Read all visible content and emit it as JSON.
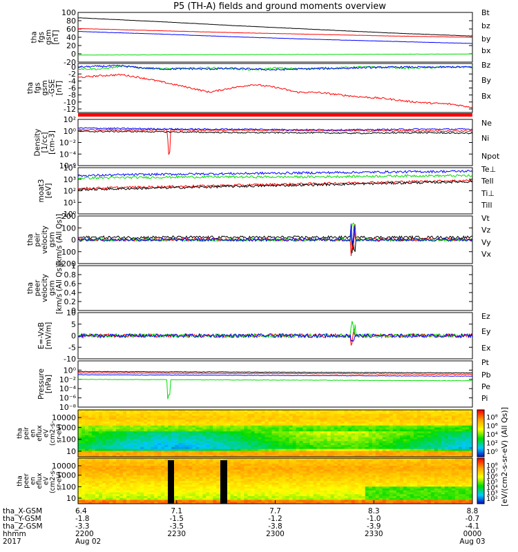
{
  "title": "P5 (TH-A) fields and ground moments overview",
  "colors": {
    "black": "#000000",
    "red": "#ff0000",
    "green": "#00dd00",
    "blue": "#0000ff"
  },
  "chart_data": [
    {
      "type": "line",
      "id": "p1",
      "ylabel": [
        "tha",
        "fgs",
        "gsm",
        "[nT]"
      ],
      "ylim": [
        -20,
        100
      ],
      "yticks": [
        100,
        80,
        60,
        40,
        20,
        0,
        -20
      ],
      "series": [
        {
          "name": "Bt",
          "color": "black",
          "y": [
            87,
            78,
            68,
            59,
            50,
            43
          ]
        },
        {
          "name": "bz",
          "color": "red",
          "y": [
            61,
            56,
            51,
            47,
            43,
            40
          ]
        },
        {
          "name": "by",
          "color": "green",
          "y": [
            -3,
            -2.5,
            -2,
            -1.5,
            -1,
            -0.5
          ]
        },
        {
          "name": "bx",
          "color": "blue",
          "y": [
            54,
            48,
            41,
            35,
            30,
            25
          ]
        }
      ]
    },
    {
      "type": "line",
      "id": "p2",
      "ylabel": [
        "tha",
        "fgs",
        "gsm",
        "-GSE",
        "[nT]"
      ],
      "ylim": [
        -13,
        1
      ],
      "yticks": [
        0,
        -2,
        -4,
        -6,
        -8,
        -10,
        -12
      ],
      "series": [
        {
          "name": "Bz",
          "color": "red",
          "y": [
            -3,
            -2.5,
            -2.2,
            -3.2,
            -4.5,
            -5.8,
            -7.2,
            -6,
            -5,
            -5.8,
            -7.2,
            -7.3,
            -8,
            -8.6,
            -9,
            -9.8,
            -10.3,
            -10.6,
            -11.5
          ]
        },
        {
          "name": "By",
          "color": "green",
          "y": [
            -0.5,
            -0.6,
            0.2,
            -0.3,
            -0.5,
            -0.4,
            -0.2,
            -0.5,
            -0.8,
            -0.3,
            -0.5,
            -0.3,
            -0.2,
            0,
            -0.1,
            -0.3,
            -0.2,
            0,
            -0.1
          ]
        },
        {
          "name": "Bx",
          "color": "blue",
          "y": [
            0,
            0.2,
            0.3,
            -0.3,
            -0.6,
            -0.5,
            -0.6,
            -0.4,
            -0.6,
            -0.8,
            -0.6,
            -0.5,
            -0.4,
            -0.2,
            -0.1,
            0,
            -0.1,
            0,
            0
          ]
        }
      ]
    },
    {
      "type": "line",
      "id": "p3",
      "log": true,
      "ylabel": [
        "Density",
        "[1/cc]",
        "[cm-3]"
      ],
      "ylim": [
        -6,
        2
      ],
      "yticks": [
        2,
        0,
        -2,
        -4,
        -6
      ],
      "ytick_labels": [
        "10²",
        "10⁰",
        "10⁻²",
        "10⁻⁴",
        "10⁻⁶"
      ],
      "series": [
        {
          "name": "Ne",
          "color": "red",
          "y": [
            0.2,
            0.2,
            0.15,
            0.1,
            0.1,
            0.05,
            0,
            0
          ]
        },
        {
          "name": "Ni",
          "color": "black",
          "y": [
            -0.1,
            -0.1,
            -0.2,
            -0.3,
            -0.3,
            -0.4,
            -0.3,
            -0.4
          ]
        },
        {
          "name": "Npot",
          "color": "blue",
          "y": [
            0.5,
            0.4,
            0.3,
            0.3,
            0.2,
            0.2,
            0.3,
            0.3
          ]
        }
      ]
    },
    {
      "type": "line",
      "id": "p4",
      "log": true,
      "ylabel": [
        "moat3",
        "[eV]"
      ],
      "ylim": [
        0,
        4
      ],
      "yticks": [
        4,
        3,
        2,
        1,
        0
      ],
      "ytick_labels": [
        "10⁴",
        "10³",
        "10²",
        "10¹",
        "10⁰"
      ],
      "series": [
        {
          "name": "Te⊥",
          "color": "red",
          "y": [
            2.2,
            2.3,
            2.4,
            2.5,
            2.6,
            2.7,
            2.8,
            2.9
          ]
        },
        {
          "name": "Tell",
          "color": "black",
          "y": [
            2.1,
            2.2,
            2.3,
            2.4,
            2.5,
            2.6,
            2.7,
            2.8
          ]
        },
        {
          "name": "Ti⊥",
          "color": "blue",
          "y": [
            3.3,
            3.4,
            3.45,
            3.5,
            3.55,
            3.6,
            3.65,
            3.7
          ]
        },
        {
          "name": "Till",
          "color": "green",
          "y": [
            3.1,
            3.15,
            3.2,
            3.2,
            3.2,
            3.25,
            3.3,
            3.3
          ]
        }
      ]
    },
    {
      "type": "line",
      "id": "p5",
      "ylabel": [
        "tha",
        "peir",
        "velocity",
        "gsm",
        "[km/s (All Qs)]"
      ],
      "ylim": [
        -200,
        200
      ],
      "yticks": [
        200,
        100,
        0,
        -100,
        -200
      ],
      "series": [
        {
          "name": "Vt",
          "color": "black",
          "y": [
            20,
            20,
            20,
            20
          ]
        },
        {
          "name": "Vz",
          "color": "red",
          "y": [
            0,
            0,
            0,
            0
          ]
        },
        {
          "name": "Vy",
          "color": "green",
          "y": [
            0,
            0,
            0,
            0
          ]
        },
        {
          "name": "Vx",
          "color": "blue",
          "y": [
            0,
            0,
            0,
            0
          ]
        }
      ]
    },
    {
      "type": "line",
      "id": "p6",
      "ylabel": [
        "tha",
        "peer",
        "velocity",
        "gsm",
        "[km/s (All Qs)]"
      ],
      "ylim": [
        0,
        1
      ],
      "yticks": [
        1.0,
        0.8,
        0.6,
        0.4,
        0.2,
        0.0
      ],
      "series": [
        {
          "name": "Vt",
          "color": "black",
          "y": []
        },
        {
          "name": "Vz",
          "color": "red",
          "y": []
        },
        {
          "name": "Vy",
          "color": "green",
          "y": []
        },
        {
          "name": "Vx",
          "color": "blue",
          "y": []
        }
      ]
    },
    {
      "type": "line",
      "id": "p7",
      "ylabel": [
        "E=-VxB",
        "[mV/m]"
      ],
      "ylim": [
        -10,
        10
      ],
      "yticks": [
        10,
        5,
        0,
        -5,
        -10
      ],
      "series": [
        {
          "name": "Ez",
          "color": "red",
          "y": [
            0,
            0,
            0,
            0
          ]
        },
        {
          "name": "Ey",
          "color": "green",
          "y": [
            0,
            0,
            0,
            0
          ]
        },
        {
          "name": "Ex",
          "color": "blue",
          "y": [
            0,
            0,
            0,
            0
          ]
        }
      ]
    },
    {
      "type": "line",
      "id": "p8",
      "log": true,
      "ylabel": [
        "Pressure",
        "[nPa]"
      ],
      "ylim": [
        -8,
        2
      ],
      "yticks": [
        0,
        -2,
        -4,
        -6,
        -8
      ],
      "ytick_labels": [
        "10⁰",
        "10⁻²",
        "10⁻⁴",
        "10⁻⁶",
        "10⁻⁸"
      ],
      "series": [
        {
          "name": "Pt",
          "color": "black",
          "y": [
            -0.3,
            -0.4,
            -0.5,
            -0.6
          ]
        },
        {
          "name": "Pb",
          "color": "red",
          "y": [
            -0.6,
            -0.7,
            -0.8,
            -0.9
          ]
        },
        {
          "name": "Pe",
          "color": "green",
          "y": [
            -2.0,
            -2.1,
            -2.2,
            -2.3
          ]
        },
        {
          "name": "Pi",
          "color": "blue",
          "y": [
            -1.0,
            -1.1,
            -1.2,
            -1.3
          ]
        }
      ]
    },
    {
      "type": "heatmap",
      "id": "p9",
      "ylabel": [
        "tha",
        "peir",
        "en",
        "eflux",
        "eV",
        "(cm2-s-",
        "sr-eV)"
      ],
      "yticks": [
        "10000",
        "1000",
        "100",
        "10"
      ],
      "colorbar_ticks": [
        "10⁸",
        "10⁶",
        "10⁴",
        "10²",
        "10⁰"
      ]
    },
    {
      "type": "heatmap",
      "id": "p10",
      "ylabel": [
        "tha",
        "peer",
        "en",
        "eflux",
        "eV",
        "(cm2-s-",
        "sr-eV)"
      ],
      "yticks": [
        "10000",
        "1000",
        "100",
        "10"
      ],
      "colorbar_ticks": [
        "10⁸",
        "10⁷",
        "10⁶",
        "10⁵",
        "10⁴",
        "10³",
        "10²"
      ]
    }
  ],
  "colorbar_label": "[eV/(cm2-s-sr-eV) (All Qs)]",
  "xaxis": {
    "row_labels": [
      "tha_X-GSM",
      "tha_Y-GSM",
      "tha_Z-GSM",
      "hhmm",
      "2017"
    ],
    "ticks": [
      {
        "x": 6.4,
        "y": -1.8,
        "z": -3.3,
        "hhmm": "2200",
        "date": "Aug 02"
      },
      {
        "x": 7.1,
        "y": -1.5,
        "z": -3.5,
        "hhmm": "2230",
        "date": ""
      },
      {
        "x": 7.7,
        "y": -1.2,
        "z": -3.8,
        "hhmm": "2300",
        "date": ""
      },
      {
        "x": 8.3,
        "y": -1.0,
        "z": -3.9,
        "hhmm": "2330",
        "date": ""
      },
      {
        "x": 8.8,
        "y": -0.7,
        "z": -4.1,
        "hhmm": "0000",
        "date": "Aug 03"
      }
    ]
  }
}
